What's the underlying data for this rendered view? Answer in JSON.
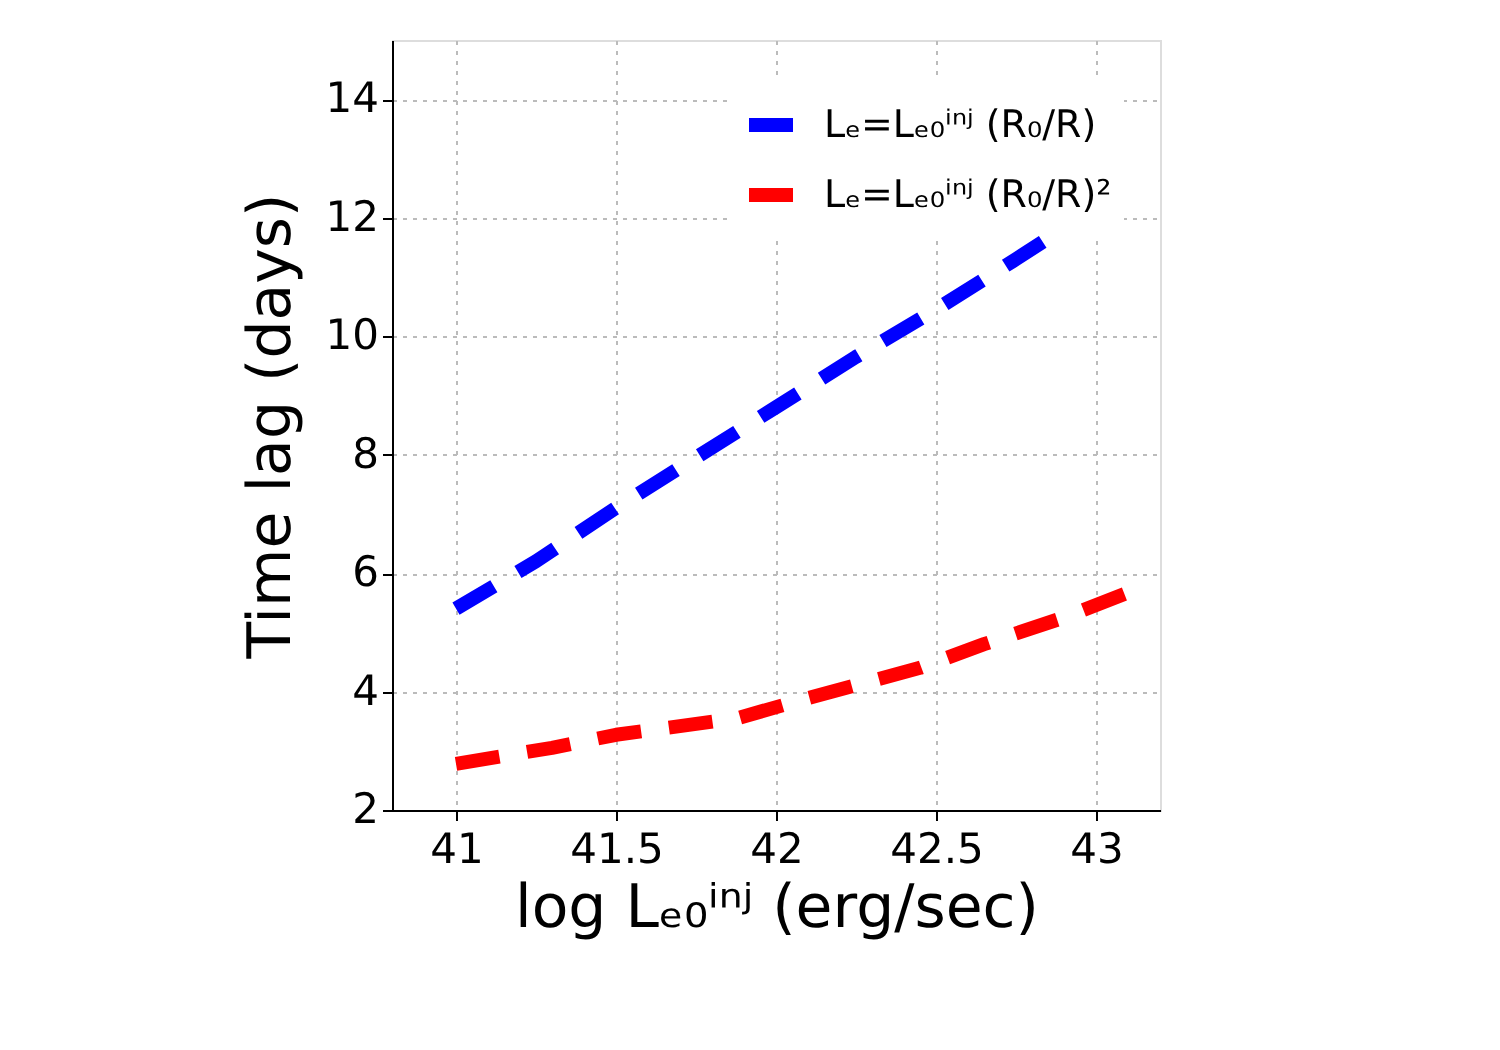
{
  "chart_data": {
    "type": "line",
    "xlabel": "log Lₑ₀ⁱⁿʲ (erg/sec)",
    "ylabel": "Time lag (days)",
    "xlim": [
      40.8,
      43.2
    ],
    "xticks": [
      41,
      41.5,
      42,
      42.5,
      43
    ],
    "ylim": [
      2,
      15
    ],
    "yticks": [
      2,
      4,
      6,
      8,
      10,
      12,
      14
    ],
    "grid": true,
    "legend": "top right",
    "line_style": "dashed",
    "series": [
      {
        "name": "Lₑ=Lₑ₀ⁱⁿʲ (R₀/R)",
        "color": "#0000ff",
        "x": [
          41,
          41.25,
          41.5,
          41.75,
          42,
          42.25,
          42.5,
          42.75,
          42.85
        ],
        "values": [
          5.4,
          6.2,
          7.1,
          7.95,
          8.8,
          9.65,
          10.45,
          11.3,
          11.65
        ]
      },
      {
        "name": "Lₑ=Lₑ₀ⁱⁿʲ (R₀/R)²",
        "color": "#ff0000",
        "x": [
          41,
          41.3,
          41.5,
          41.88,
          42.1,
          42.45,
          42.65,
          42.9,
          43.09
        ],
        "values": [
          2.78,
          3.05,
          3.27,
          3.55,
          3.89,
          4.4,
          4.8,
          5.25,
          5.65
        ]
      }
    ]
  }
}
